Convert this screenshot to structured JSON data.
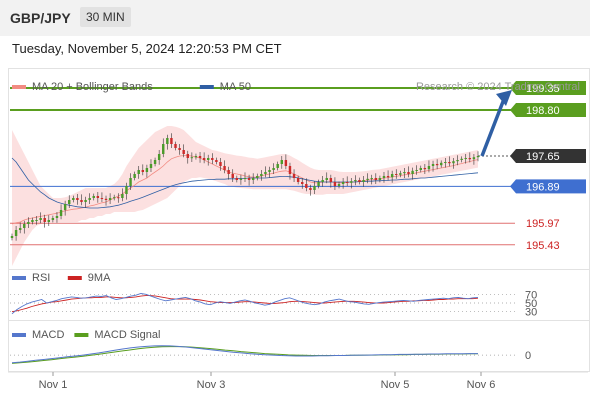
{
  "header": {
    "pair": "GBP/JPY",
    "timeframe": "30 MIN"
  },
  "timestamp": "Tuesday, November 5, 2024 12:20:53 PM CET",
  "legend_main": [
    {
      "label": "MA 20 + Bollinger Bands",
      "color": "#f28b82"
    },
    {
      "label": "MA 50",
      "color": "#2f5fa4"
    }
  ],
  "copyright": "Research © 2024 Trading Central",
  "legend_rsi": [
    {
      "label": "RSI",
      "color": "#5577cc"
    },
    {
      "label": "9MA",
      "color": "#cc2222"
    }
  ],
  "legend_macd": [
    {
      "label": "MACD",
      "color": "#5577cc"
    },
    {
      "label": "MACD Signal",
      "color": "#5a9e1f"
    }
  ],
  "colors": {
    "up": "#4a9a2a",
    "down": "#cc2a2a",
    "resistance": "#5a9e1f",
    "support": "#3f6fd0",
    "pivot": "#e07070",
    "band": "#fbd5d5",
    "price": "#333333",
    "arrow": "#2f5fa4"
  },
  "chart_data": {
    "type": "candlestick",
    "ylim": [
      194.9,
      199.8
    ],
    "levels": [
      {
        "value": 199.35,
        "label": "199.35",
        "kind": "resistance"
      },
      {
        "value": 198.8,
        "label": "198.80",
        "kind": "resistance"
      },
      {
        "value": 197.65,
        "label": "197.65",
        "kind": "current"
      },
      {
        "value": 196.89,
        "label": "196.89",
        "kind": "support"
      },
      {
        "value": 195.97,
        "label": "195.97",
        "kind": "pivot"
      },
      {
        "value": 195.43,
        "label": "195.43",
        "kind": "pivot"
      }
    ],
    "x_ticks": [
      "Nov 1",
      "Nov 3",
      "Nov 5",
      "Nov 6"
    ],
    "close": [
      195.65,
      195.8,
      195.85,
      195.95,
      196.0,
      196.05,
      196.05,
      196.1,
      196.0,
      196.05,
      196.1,
      196.15,
      196.3,
      196.45,
      196.55,
      196.6,
      196.55,
      196.5,
      196.55,
      196.6,
      196.65,
      196.6,
      196.58,
      196.55,
      196.6,
      196.62,
      196.6,
      196.7,
      196.9,
      197.1,
      197.2,
      197.3,
      197.25,
      197.35,
      197.45,
      197.55,
      197.7,
      197.95,
      198.1,
      197.95,
      197.85,
      197.8,
      197.7,
      197.6,
      197.62,
      197.65,
      197.6,
      197.55,
      197.6,
      197.55,
      197.5,
      197.4,
      197.3,
      197.2,
      197.1,
      197.05,
      197.08,
      197.1,
      197.05,
      197.1,
      197.15,
      197.2,
      197.25,
      197.3,
      197.35,
      197.45,
      197.55,
      197.4,
      197.2,
      197.1,
      197.0,
      196.95,
      196.85,
      196.8,
      196.9,
      197.0,
      197.05,
      197.1,
      197.0,
      196.9,
      196.95,
      197.0,
      196.98,
      197.02,
      197.05,
      197.0,
      197.05,
      197.08,
      197.1,
      197.05,
      197.1,
      197.15,
      197.12,
      197.2,
      197.18,
      197.22,
      197.25,
      197.2,
      197.28,
      197.3,
      197.35,
      197.32,
      197.4,
      197.45,
      197.42,
      197.48,
      197.5,
      197.47,
      197.52,
      197.55,
      197.58,
      197.6,
      197.57,
      197.62,
      197.65
    ],
    "ma20": [
      195.95,
      195.98,
      196.0,
      196.05,
      196.08,
      196.1,
      196.12,
      196.14,
      196.16,
      196.18,
      196.2,
      196.22,
      196.25,
      196.28,
      196.3,
      196.32,
      196.33,
      196.35,
      196.37,
      196.4,
      196.42,
      196.45,
      196.48,
      196.5,
      196.55,
      196.6,
      196.65,
      196.7,
      196.78,
      196.85,
      196.92,
      197.0,
      197.05,
      197.1,
      197.18,
      197.25,
      197.32,
      197.4,
      197.5,
      197.58,
      197.62,
      197.65,
      197.66,
      197.66,
      197.65,
      197.62,
      197.6,
      197.55,
      197.5,
      197.45,
      197.4,
      197.35,
      197.3,
      197.25,
      197.22,
      197.2,
      197.18,
      197.15,
      197.13,
      197.12,
      197.12,
      197.15,
      197.18,
      197.2,
      197.22,
      197.25,
      197.27,
      197.28,
      197.25,
      197.2,
      197.15,
      197.1,
      197.05,
      197.0,
      196.98,
      196.98,
      197.0,
      197.0,
      197.0,
      196.99,
      196.98,
      196.98,
      196.99,
      197.0,
      197.0,
      197.02,
      197.03,
      197.05,
      197.06,
      197.07,
      197.08,
      197.1,
      197.11,
      197.13,
      197.14,
      197.16,
      197.18,
      197.19,
      197.21,
      197.23,
      197.25,
      197.27,
      197.29,
      197.31,
      197.33,
      197.35,
      197.37,
      197.39,
      197.41,
      197.44,
      197.46,
      197.49,
      197.51,
      197.54,
      197.56
    ],
    "bb_upper": [
      198.3,
      198.1,
      197.9,
      197.7,
      197.5,
      197.3,
      197.1,
      196.9,
      196.8,
      196.7,
      196.6,
      196.6,
      196.6,
      196.62,
      196.65,
      196.7,
      196.75,
      196.8,
      196.85,
      196.85,
      196.85,
      196.85,
      196.85,
      196.85,
      196.9,
      196.95,
      197.05,
      197.2,
      197.4,
      197.55,
      197.7,
      197.85,
      197.95,
      198.05,
      198.15,
      198.25,
      198.3,
      198.35,
      198.4,
      198.4,
      198.38,
      198.35,
      198.3,
      198.2,
      198.1,
      198.0,
      197.95,
      197.9,
      197.85,
      197.8,
      197.78,
      197.75,
      197.72,
      197.7,
      197.68,
      197.66,
      197.65,
      197.63,
      197.61,
      197.6,
      197.58,
      197.6,
      197.62,
      197.64,
      197.66,
      197.68,
      197.7,
      197.7,
      197.66,
      197.6,
      197.55,
      197.48,
      197.42,
      197.36,
      197.32,
      197.3,
      197.3,
      197.3,
      197.3,
      197.28,
      197.26,
      197.25,
      197.25,
      197.25,
      197.25,
      197.26,
      197.27,
      197.28,
      197.3,
      197.31,
      197.32,
      197.34,
      197.36,
      197.38,
      197.4,
      197.42,
      197.44,
      197.46,
      197.48,
      197.5,
      197.52,
      197.54,
      197.56,
      197.58,
      197.6,
      197.62,
      197.64,
      197.66,
      197.68,
      197.7,
      197.72,
      197.74,
      197.76,
      197.78,
      197.8
    ],
    "bb_lower": [
      194.9,
      195.1,
      195.3,
      195.5,
      195.65,
      195.8,
      195.9,
      195.95,
      196.0,
      196.0,
      196.0,
      196.0,
      196.0,
      196.0,
      196.0,
      196.0,
      196.0,
      196.05,
      196.05,
      196.1,
      196.1,
      196.15,
      196.15,
      196.2,
      196.2,
      196.25,
      196.25,
      196.25,
      196.25,
      196.25,
      196.25,
      196.28,
      196.3,
      196.35,
      196.4,
      196.45,
      196.5,
      196.55,
      196.6,
      196.7,
      196.8,
      196.9,
      197.0,
      197.05,
      197.1,
      197.1,
      197.12,
      197.1,
      197.08,
      197.05,
      197.02,
      196.98,
      196.95,
      196.9,
      196.88,
      196.86,
      196.85,
      196.84,
      196.83,
      196.82,
      196.82,
      196.82,
      196.82,
      196.82,
      196.82,
      196.82,
      196.82,
      196.82,
      196.8,
      196.78,
      196.75,
      196.72,
      196.7,
      196.7,
      196.68,
      196.68,
      196.68,
      196.7,
      196.7,
      196.7,
      196.7,
      196.7,
      196.72,
      196.74,
      196.76,
      196.78,
      196.8,
      196.82,
      196.84,
      196.86,
      196.88,
      196.9,
      196.92,
      196.94,
      196.96,
      196.98,
      197.0,
      197.02,
      197.04,
      197.06,
      197.08,
      197.1,
      197.12,
      197.14,
      197.16,
      197.18,
      197.2,
      197.22,
      197.24,
      197.26,
      197.28,
      197.3,
      197.32,
      197.34,
      197.36
    ],
    "ma50": [
      197.6,
      197.5,
      197.35,
      197.2,
      197.05,
      196.95,
      196.85,
      196.75,
      196.68,
      196.6,
      196.55,
      196.5,
      196.47,
      196.44,
      196.42,
      196.4,
      196.38,
      196.37,
      196.36,
      196.35,
      196.35,
      196.35,
      196.36,
      196.37,
      196.38,
      196.4,
      196.42,
      196.45,
      196.48,
      196.52,
      196.55,
      196.58,
      196.62,
      196.66,
      196.7,
      196.74,
      196.78,
      196.82,
      196.86,
      196.9,
      196.93,
      196.96,
      196.98,
      197.0,
      197.02,
      197.03,
      197.04,
      197.05,
      197.06,
      197.06,
      197.07,
      197.07,
      197.07,
      197.08,
      197.08,
      197.08,
      197.09,
      197.09,
      197.1,
      197.1,
      197.1,
      197.1,
      197.1,
      197.11,
      197.12,
      197.13,
      197.14,
      197.14,
      197.13,
      197.12,
      197.1,
      197.08,
      197.06,
      197.04,
      197.02,
      197.01,
      197.0,
      197.0,
      197.0,
      197.0,
      197.0,
      197.0,
      197.0,
      197.0,
      197.0,
      197.01,
      197.01,
      197.02,
      197.02,
      197.03,
      197.03,
      197.04,
      197.04,
      197.05,
      197.05,
      197.06,
      197.07,
      197.07,
      197.08,
      197.09,
      197.1,
      197.1,
      197.11,
      197.12,
      197.13,
      197.14,
      197.15,
      197.16,
      197.17,
      197.18,
      197.19,
      197.2,
      197.21,
      197.22,
      197.23
    ],
    "rsi": {
      "levels": [
        70,
        50,
        30
      ],
      "ylim": [
        20,
        80
      ],
      "rsi": [
        25,
        35,
        42,
        48,
        52,
        55,
        58,
        50,
        53,
        56,
        60,
        62,
        64,
        63,
        61,
        62,
        64,
        66,
        65,
        67,
        62,
        58,
        60,
        63,
        66,
        68,
        72,
        70,
        66,
        62,
        58,
        55,
        57,
        59,
        61,
        63,
        60,
        55,
        52,
        48,
        46,
        50,
        53,
        51,
        49,
        52,
        55,
        57,
        54,
        50,
        48,
        45,
        47,
        52,
        56,
        60,
        62,
        58,
        54,
        50,
        48,
        46,
        48,
        52,
        55,
        57,
        59,
        56,
        53,
        52,
        50,
        48,
        47,
        49,
        51,
        52,
        53,
        54,
        55,
        56,
        55,
        54,
        56,
        57,
        58,
        59,
        60,
        61,
        60,
        62,
        63,
        61,
        60,
        62,
        63
      ],
      "ma9": [
        30,
        32,
        35,
        38,
        42,
        45,
        48,
        50,
        52,
        53,
        55,
        57,
        59,
        60,
        61,
        62,
        62,
        63,
        63,
        64,
        64,
        63,
        62,
        62,
        63,
        64,
        66,
        67,
        67,
        66,
        64,
        62,
        60,
        59,
        59,
        59,
        59,
        58,
        57,
        55,
        53,
        52,
        51,
        51,
        51,
        51,
        52,
        53,
        53,
        52,
        51,
        50,
        49,
        49,
        50,
        51,
        53,
        54,
        54,
        53,
        52,
        51,
        50,
        50,
        51,
        52,
        53,
        54,
        54,
        54,
        53,
        52,
        51,
        50,
        50,
        50,
        51,
        52,
        53,
        54,
        54,
        55,
        55,
        56,
        56,
        57,
        58,
        58,
        59,
        59,
        60,
        60,
        60,
        60,
        61
      ]
    },
    "macd": {
      "levels": [
        0
      ],
      "ylim": [
        -0.5,
        0.6
      ],
      "macd": [
        -0.35,
        -0.32,
        -0.28,
        -0.24,
        -0.2,
        -0.16,
        -0.12,
        -0.08,
        -0.04,
        0,
        0.05,
        0.1,
        0.16,
        0.22,
        0.28,
        0.33,
        0.37,
        0.4,
        0.42,
        0.43,
        0.42,
        0.4,
        0.37,
        0.33,
        0.29,
        0.25,
        0.21,
        0.17,
        0.13,
        0.1,
        0.07,
        0.04,
        0.02,
        0,
        -0.02,
        -0.03,
        -0.04,
        -0.04,
        -0.04,
        -0.03,
        -0.03,
        -0.02,
        -0.02,
        -0.01,
        0,
        0,
        0.01,
        0.02,
        0.02,
        0.03,
        0.03,
        0.04,
        0.04,
        0.05,
        0.05,
        0.06,
        0.06,
        0.06,
        0.07,
        0.07
      ],
      "signal": [
        -0.38,
        -0.35,
        -0.32,
        -0.29,
        -0.25,
        -0.21,
        -0.17,
        -0.13,
        -0.09,
        -0.05,
        -0.01,
        0.04,
        0.09,
        0.14,
        0.19,
        0.24,
        0.29,
        0.33,
        0.36,
        0.38,
        0.39,
        0.39,
        0.38,
        0.36,
        0.33,
        0.3,
        0.27,
        0.23,
        0.2,
        0.16,
        0.13,
        0.1,
        0.07,
        0.05,
        0.03,
        0.01,
        0,
        -0.01,
        -0.02,
        -0.02,
        -0.02,
        -0.02,
        -0.02,
        -0.01,
        -0.01,
        0,
        0,
        0.01,
        0.01,
        0.02,
        0.02,
        0.03,
        0.03,
        0.04,
        0.04,
        0.05,
        0.05,
        0.05,
        0.06,
        0.06
      ]
    }
  }
}
